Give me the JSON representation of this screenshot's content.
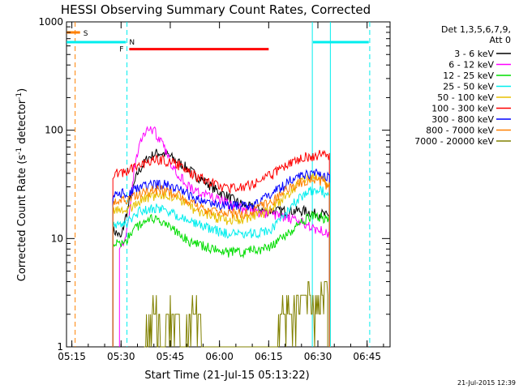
{
  "chart_data": {
    "type": "line",
    "title": "HESSI Observing Summary Count Rates, Corrected",
    "xlabel": "Start Time (21-Jul-15 05:13:22)",
    "ylabel_main": "Corrected Count Rate (s",
    "ylabel_exp1": "-1",
    "ylabel_mid": " detector",
    "ylabel_exp2": "-1",
    "ylabel_end": ")",
    "timestamp": "21-Jul-2015 12:39",
    "yscale": "log",
    "ylim": [
      1,
      1000
    ],
    "xlim": [
      "05:13:22",
      "06:52:00"
    ],
    "xticks": [
      {
        "t": 15,
        "label": "05:15"
      },
      {
        "t": 30,
        "label": "05:30"
      },
      {
        "t": 45,
        "label": "05:45"
      },
      {
        "t": 60,
        "label": "06:00"
      },
      {
        "t": 75,
        "label": "06:15"
      },
      {
        "t": 90,
        "label": "06:30"
      },
      {
        "t": 105,
        "label": "06:45"
      }
    ],
    "yticks": [
      {
        "v": 1,
        "label": "1"
      },
      {
        "v": 10,
        "label": "10"
      },
      {
        "v": 100,
        "label": "100"
      },
      {
        "v": 1000,
        "label": "1000"
      }
    ],
    "legend": {
      "header1": "Det 1,3,5,6,7,9,",
      "header2": "Att 0",
      "position": "right"
    },
    "series": [
      {
        "name": "3 - 6 keV",
        "color": "#000000",
        "x": [
          27.5,
          29,
          30,
          31,
          33,
          35,
          38,
          41,
          44,
          47,
          50,
          53,
          56,
          59,
          62,
          65,
          68,
          71,
          74,
          77,
          80,
          83,
          86,
          89,
          91,
          93,
          93.5
        ],
        "y": [
          12,
          11,
          10,
          14,
          25,
          40,
          55,
          62,
          60,
          52,
          45,
          38,
          33,
          28,
          25,
          22,
          20,
          19,
          18,
          18,
          18,
          18,
          18,
          17,
          17,
          16,
          16
        ]
      },
      {
        "name": "6 - 12 keV",
        "color": "#ff00ff",
        "x": [
          29.5,
          30.5,
          31.5,
          32.5,
          34,
          36,
          38,
          40,
          42,
          44,
          46,
          48,
          50,
          52,
          55,
          58,
          61,
          64,
          67,
          70,
          73,
          76,
          79,
          82,
          85,
          88,
          90,
          92,
          93.5
        ],
        "y": [
          9,
          9,
          10,
          16,
          45,
          80,
          105,
          100,
          80,
          60,
          45,
          38,
          32,
          28,
          26,
          24,
          22,
          20,
          19,
          18,
          17,
          17,
          16,
          15,
          14,
          13,
          12,
          12,
          11
        ]
      },
      {
        "name": "12 - 25 keV",
        "color": "#00dd00",
        "x": [
          27.5,
          30,
          32,
          34,
          36,
          38,
          40,
          42,
          44,
          46,
          48,
          50,
          52,
          55,
          58,
          61,
          64,
          67,
          70,
          73,
          76,
          79,
          82,
          85,
          88,
          91,
          93.5
        ],
        "y": [
          9,
          9,
          10,
          12,
          14,
          15,
          15,
          14,
          13,
          12,
          11,
          10,
          9,
          8.5,
          8,
          7.5,
          7.5,
          7.5,
          8,
          8,
          8.5,
          10,
          12,
          14,
          16,
          16,
          14
        ]
      },
      {
        "name": "25 - 50 keV",
        "color": "#00eeee",
        "x": [
          27.5,
          30,
          32,
          34,
          36,
          38,
          40,
          42,
          44,
          46,
          48,
          50,
          52,
          55,
          58,
          61,
          64,
          67,
          70,
          73,
          76,
          79,
          82,
          85,
          88,
          91,
          93.5
        ],
        "y": [
          14,
          13,
          14,
          16,
          18,
          19,
          19,
          19,
          18,
          17,
          16,
          15,
          14,
          13,
          12,
          11.5,
          11,
          11,
          11,
          11.5,
          12.5,
          15,
          20,
          25,
          28,
          28,
          24
        ]
      },
      {
        "name": "50 - 100 keV",
        "color": "#e8c000",
        "x": [
          27.5,
          30,
          32,
          34,
          36,
          38,
          40,
          42,
          44,
          46,
          48,
          50,
          52,
          55,
          58,
          61,
          64,
          67,
          70,
          73,
          76,
          79,
          82,
          85,
          88,
          91,
          93.5
        ],
        "y": [
          18,
          18,
          19,
          20,
          22,
          24,
          25,
          25,
          25,
          24,
          23,
          21,
          19,
          17,
          16,
          15,
          15,
          15,
          16,
          17,
          19,
          23,
          28,
          34,
          37,
          36,
          32
        ]
      },
      {
        "name": "100 - 300 keV",
        "color": "#ff0000",
        "x": [
          27.5,
          30,
          32,
          34,
          36,
          38,
          40,
          42,
          44,
          46,
          48,
          50,
          52,
          55,
          58,
          61,
          64,
          67,
          70,
          73,
          76,
          79,
          82,
          85,
          88,
          91,
          93.5
        ],
        "y": [
          40,
          40,
          42,
          45,
          48,
          51,
          53,
          53,
          52,
          50,
          47,
          43,
          39,
          35,
          32,
          30,
          29,
          30,
          32,
          35,
          39,
          45,
          52,
          56,
          58,
          60,
          58
        ]
      },
      {
        "name": "300 - 800 keV",
        "color": "#0000ff",
        "x": [
          27.5,
          30,
          32,
          34,
          36,
          38,
          40,
          42,
          44,
          46,
          48,
          50,
          52,
          55,
          58,
          61,
          64,
          67,
          70,
          73,
          76,
          79,
          82,
          85,
          88,
          91,
          93.5
        ],
        "y": [
          26,
          26,
          27,
          28,
          30,
          31,
          32,
          32,
          31,
          30,
          28,
          26,
          24,
          22,
          21,
          20,
          20,
          20,
          21,
          23,
          26,
          30,
          35,
          38,
          40,
          39,
          36
        ]
      },
      {
        "name": "800 - 7000 keV",
        "color": "#ff8000",
        "x": [
          27.5,
          30,
          32,
          34,
          36,
          38,
          40,
          42,
          44,
          46,
          48,
          50,
          52,
          55,
          58,
          61,
          64,
          67,
          70,
          73,
          76,
          79,
          82,
          85,
          88,
          91,
          93.5
        ],
        "y": [
          22,
          22,
          23,
          24,
          26,
          27,
          28,
          28,
          27,
          26,
          25,
          23,
          21,
          19,
          18,
          17,
          17,
          17,
          18,
          20,
          22,
          26,
          30,
          33,
          35,
          34,
          30
        ]
      },
      {
        "name": "7000 - 20000 keV",
        "color": "#808000",
        "x": [
          37,
          39,
          41,
          43,
          45,
          47,
          49,
          51,
          53,
          55,
          57,
          59,
          61,
          63,
          65,
          67,
          69,
          71,
          73,
          75,
          77,
          79,
          81,
          83,
          85,
          87,
          89,
          91,
          93
        ],
        "y": [
          1,
          2,
          2,
          1,
          2,
          2,
          1,
          2,
          2,
          1,
          1,
          1,
          1,
          1,
          1,
          1,
          1,
          1,
          1,
          1,
          1,
          2,
          2,
          2,
          3,
          3,
          2,
          3,
          3
        ]
      }
    ],
    "flag_labels": {
      "s": "S",
      "n": "N",
      "f": "F"
    },
    "flags": [
      {
        "key": "s",
        "color": "#ff8000",
        "t0": 13.4,
        "t1": 17.5,
        "y": 800
      },
      {
        "key": "n",
        "color": "#00eeee",
        "t0": 13.4,
        "t1": 31.5,
        "y": 650
      },
      {
        "key": "n2",
        "color": "#00eeee",
        "t0": 88.5,
        "t1": 105.5,
        "y": 650
      },
      {
        "key": "f",
        "color": "#ff0000",
        "t0": 32.5,
        "t1": 75,
        "y": 560
      }
    ],
    "vlines": [
      {
        "t": 16,
        "color": "#ff8000",
        "dash": true
      },
      {
        "t": 31.8,
        "color": "#00eeee",
        "dash": true
      },
      {
        "t": 88.3,
        "color": "#00eeee",
        "dash": false
      },
      {
        "t": 93.8,
        "color": "#00eeee",
        "dash": false
      },
      {
        "t": 105.8,
        "color": "#00eeee",
        "dash": true
      }
    ]
  }
}
